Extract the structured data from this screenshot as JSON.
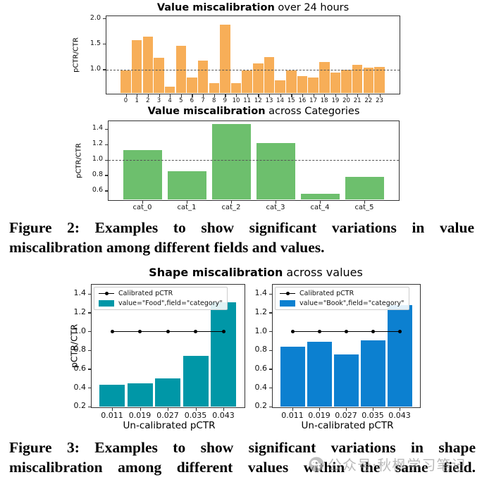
{
  "figure2": {
    "chart1_title_bold": "Value miscalibration",
    "chart1_title_rest": " over 24 hours",
    "chart2_title_bold": "Value miscalibration",
    "chart2_title_rest": " across Categories",
    "caption_line1": "Figure 2: Examples to show significant variations in value",
    "caption_line2": "miscalibration among different fields and values."
  },
  "figure3": {
    "title_bold": "Shape miscalibration",
    "title_rest": " across values",
    "caption_line1": "Figure 3: Examples to show significant variations in shape",
    "caption_line2": "miscalibration among different values within the same field."
  },
  "watermark": {
    "icon": "wechat-icon",
    "text": "公众号·秋枫学习笔记",
    "color": "#8f8f8f"
  },
  "chart_data": [
    {
      "id": "value-miscalibration-hours",
      "type": "bar",
      "title": "Value miscalibration over 24 hours",
      "ylabel": "pCTR/CTR",
      "xlabel": "",
      "categories": [
        "0",
        "1",
        "2",
        "3",
        "4",
        "5",
        "6",
        "7",
        "8",
        "9",
        "10",
        "11",
        "12",
        "13",
        "14",
        "15",
        "16",
        "17",
        "18",
        "19",
        "20",
        "21",
        "22",
        "23"
      ],
      "values": [
        0.98,
        1.58,
        1.65,
        1.24,
        0.67,
        1.47,
        0.84,
        1.18,
        0.73,
        1.89,
        0.73,
        0.99,
        1.12,
        1.25,
        0.79,
        0.99,
        0.88,
        0.85,
        1.15,
        0.94,
        1.0,
        1.1,
        1.04,
        1.05
      ],
      "bar_color": "#F7AE58",
      "yticks": [
        1.0,
        1.5,
        2.0
      ],
      "ylim": [
        0.54,
        2.05
      ],
      "ref_line": 1.0,
      "grid": false
    },
    {
      "id": "value-miscalibration-categories",
      "type": "bar",
      "title": "Value miscalibration across Categories",
      "ylabel": "pCTR/CTR",
      "xlabel": "",
      "categories": [
        "cat_0",
        "cat_1",
        "cat_2",
        "cat_3",
        "cat_4",
        "cat_5"
      ],
      "values": [
        1.13,
        0.85,
        1.46,
        1.22,
        0.56,
        0.78
      ],
      "bar_color": "#6DBF6D",
      "yticks": [
        0.6,
        0.8,
        1.0,
        1.2,
        1.4
      ],
      "ylim": [
        0.49,
        1.5
      ],
      "ref_line": 1.0,
      "grid": false
    },
    {
      "id": "shape-miscalibration-food",
      "type": "bar",
      "title": "Shape miscalibration across values",
      "ylabel": "pCTR/CTR",
      "xlabel": "Un-calibrated pCTR",
      "categories": [
        "0.011",
        "0.019",
        "0.027",
        "0.035",
        "0.043"
      ],
      "values": [
        0.43,
        0.45,
        0.5,
        0.74,
        1.31
      ],
      "bar_color": "#0097A7",
      "yticks": [
        0.2,
        0.4,
        0.6,
        0.8,
        1.0,
        1.2,
        1.4
      ],
      "ylim": [
        0.2,
        1.5
      ],
      "calibration_line": {
        "y": 1.0,
        "label": "Calibrated pCTR"
      },
      "legend": {
        "position": "upper-left",
        "entries": [
          {
            "marker": "line",
            "label": "Calibrated pCTR"
          },
          {
            "marker": "patch",
            "color": "#0097A7",
            "label": "value=\"Food\",field=\"category\""
          }
        ]
      },
      "grid": false
    },
    {
      "id": "shape-miscalibration-book",
      "type": "bar",
      "title": "Shape miscalibration across values",
      "ylabel": "",
      "xlabel": "Un-calibrated pCTR",
      "categories": [
        "0.011",
        "0.019",
        "0.027",
        "0.035",
        "0.043"
      ],
      "values": [
        0.84,
        0.89,
        0.76,
        0.91,
        1.28
      ],
      "bar_color": "#0C80D0",
      "yticks": [
        0.2,
        0.4,
        0.6,
        0.8,
        1.0,
        1.2,
        1.4
      ],
      "ylim": [
        0.2,
        1.5
      ],
      "calibration_line": {
        "y": 1.0,
        "label": "Calibrated pCTR"
      },
      "legend": {
        "position": "upper-left",
        "entries": [
          {
            "marker": "line",
            "label": "Calibrated pCTR"
          },
          {
            "marker": "patch",
            "color": "#0C80D0",
            "label": "value=\"Book\",field=\"category\""
          }
        ]
      },
      "grid": false
    }
  ]
}
